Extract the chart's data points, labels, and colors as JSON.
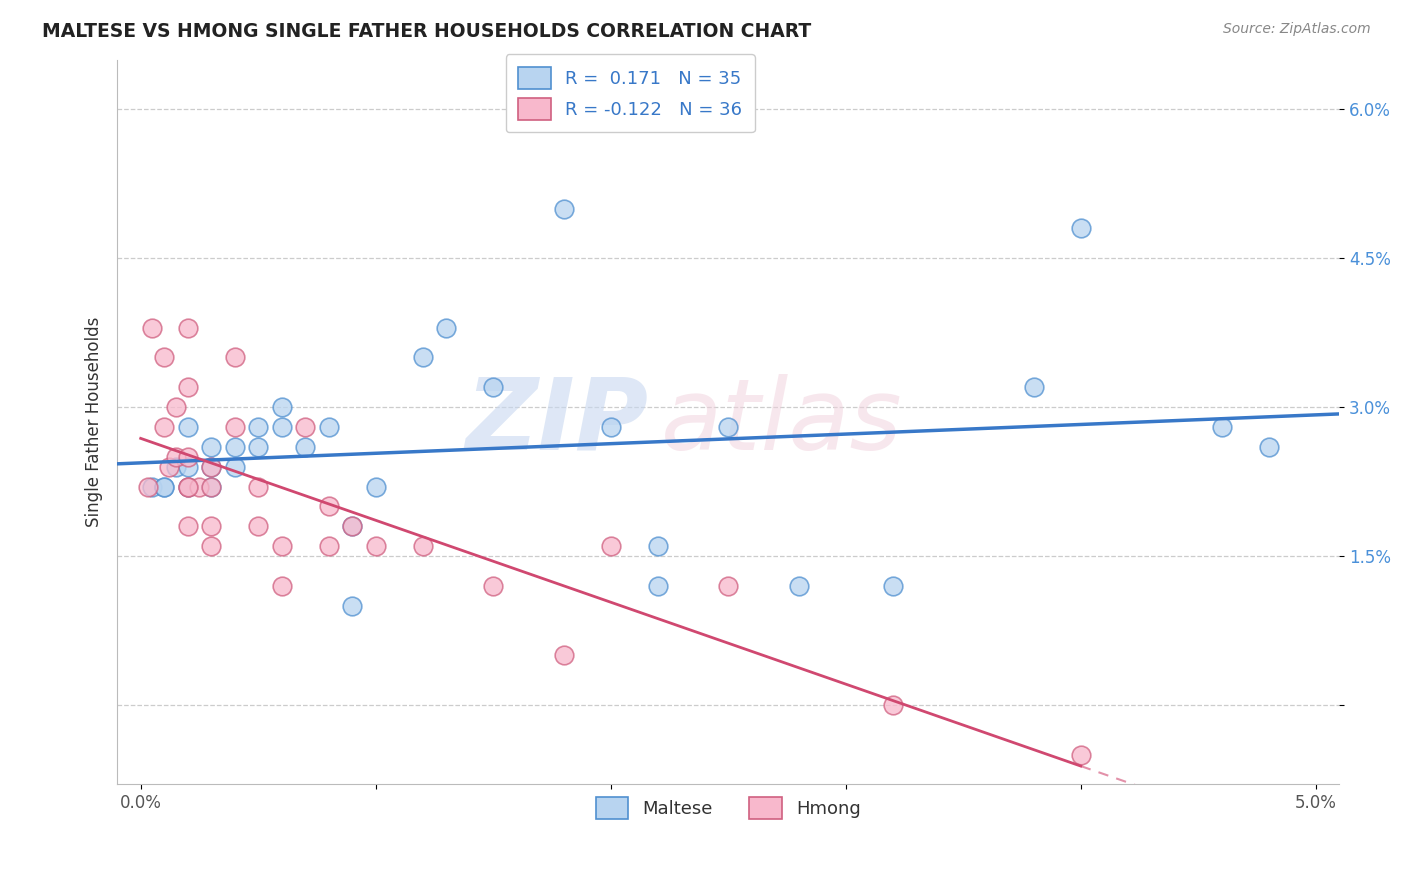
{
  "title": "MALTESE VS HMONG SINGLE FATHER HOUSEHOLDS CORRELATION CHART",
  "source": "Source: ZipAtlas.com",
  "ylabel": "Single Father Households",
  "xlim": [
    -0.001,
    0.051
  ],
  "ylim": [
    -0.008,
    0.065
  ],
  "r_maltese": 0.171,
  "n_maltese": 35,
  "r_hmong": -0.122,
  "n_hmong": 36,
  "maltese_fill": "#b8d4f0",
  "hmong_fill": "#f8b8cc",
  "maltese_edge": "#5090d0",
  "hmong_edge": "#d06080",
  "maltese_line": "#3878c8",
  "hmong_line": "#d04870",
  "grid_color": "#cccccc",
  "maltese_x": [
    0.0005,
    0.001,
    0.001,
    0.0015,
    0.002,
    0.002,
    0.002,
    0.003,
    0.003,
    0.003,
    0.004,
    0.004,
    0.005,
    0.005,
    0.006,
    0.006,
    0.007,
    0.008,
    0.009,
    0.009,
    0.01,
    0.012,
    0.013,
    0.015,
    0.018,
    0.02,
    0.022,
    0.025,
    0.028,
    0.032,
    0.038,
    0.04,
    0.046,
    0.048,
    0.022
  ],
  "maltese_y": [
    0.022,
    0.022,
    0.022,
    0.024,
    0.028,
    0.022,
    0.024,
    0.024,
    0.022,
    0.026,
    0.026,
    0.024,
    0.028,
    0.026,
    0.028,
    0.03,
    0.026,
    0.028,
    0.01,
    0.018,
    0.022,
    0.035,
    0.038,
    0.032,
    0.05,
    0.028,
    0.016,
    0.028,
    0.012,
    0.012,
    0.032,
    0.048,
    0.028,
    0.026,
    0.012
  ],
  "hmong_x": [
    0.0003,
    0.0005,
    0.001,
    0.001,
    0.0012,
    0.0015,
    0.0015,
    0.002,
    0.002,
    0.002,
    0.0025,
    0.003,
    0.003,
    0.003,
    0.004,
    0.004,
    0.005,
    0.005,
    0.006,
    0.006,
    0.007,
    0.008,
    0.008,
    0.009,
    0.01,
    0.012,
    0.015,
    0.018,
    0.02,
    0.025,
    0.032,
    0.04,
    0.002,
    0.003,
    0.002,
    0.002
  ],
  "hmong_y": [
    0.022,
    0.038,
    0.035,
    0.028,
    0.024,
    0.03,
    0.025,
    0.032,
    0.022,
    0.038,
    0.022,
    0.018,
    0.022,
    0.016,
    0.028,
    0.035,
    0.018,
    0.022,
    0.012,
    0.016,
    0.028,
    0.016,
    0.02,
    0.018,
    0.016,
    0.016,
    0.012,
    0.005,
    0.016,
    0.012,
    0.0,
    -0.005,
    0.018,
    0.024,
    0.025,
    0.022
  ]
}
